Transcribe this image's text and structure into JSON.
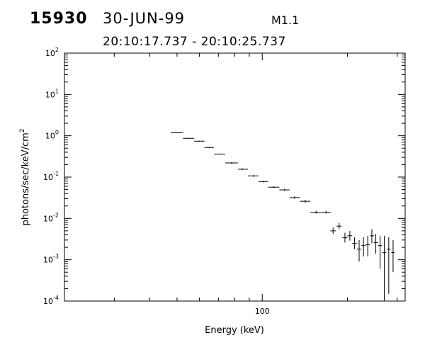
{
  "header": {
    "event_id": "15930",
    "date": "30-JUN-99",
    "flare_class": "M1.1",
    "time_range": "20:10:17.737 - 20:10:25.737"
  },
  "chart_data": {
    "type": "scatter",
    "title": "",
    "xlabel": "Energy (keV)",
    "ylabel_base": "photons/sec/keV/cm",
    "ylabel_sup": "2",
    "xscale": "log",
    "yscale": "log",
    "xlim": [
      20,
      320
    ],
    "ylim": [
      0.0001,
      100
    ],
    "grid": false,
    "x_tick_labels": [
      "100"
    ],
    "x_minor_ticks": [
      30,
      40,
      50,
      60,
      70,
      80,
      90,
      200,
      300
    ],
    "y_ticks": [
      {
        "value": 0.0001,
        "base": "10",
        "exp": "-4"
      },
      {
        "value": 0.001,
        "base": "10",
        "exp": "-3"
      },
      {
        "value": 0.01,
        "base": "10",
        "exp": "-2"
      },
      {
        "value": 0.1,
        "base": "10",
        "exp": "-1"
      },
      {
        "value": 1,
        "base": "10",
        "exp": "0"
      },
      {
        "value": 10,
        "base": "10",
        "exp": "1"
      },
      {
        "value": 100,
        "base": "10",
        "exp": "2"
      }
    ],
    "points": [
      {
        "x": 50,
        "xlo": 47.5,
        "xhi": 52.5,
        "y": 1.18,
        "ylo": 1.15,
        "yhi": 1.21
      },
      {
        "x": 55,
        "xlo": 52.5,
        "xhi": 57.5,
        "y": 0.87,
        "ylo": 0.85,
        "yhi": 0.89
      },
      {
        "x": 60,
        "xlo": 57.5,
        "xhi": 62.5,
        "y": 0.74,
        "ylo": 0.72,
        "yhi": 0.76
      },
      {
        "x": 65,
        "xlo": 62.5,
        "xhi": 67.5,
        "y": 0.52,
        "ylo": 0.5,
        "yhi": 0.54
      },
      {
        "x": 71,
        "xlo": 67.5,
        "xhi": 74,
        "y": 0.36,
        "ylo": 0.35,
        "yhi": 0.37
      },
      {
        "x": 78,
        "xlo": 74,
        "xhi": 82,
        "y": 0.22,
        "ylo": 0.21,
        "yhi": 0.23
      },
      {
        "x": 85,
        "xlo": 82,
        "xhi": 89,
        "y": 0.155,
        "ylo": 0.148,
        "yhi": 0.162
      },
      {
        "x": 93,
        "xlo": 89,
        "xhi": 97,
        "y": 0.107,
        "ylo": 0.102,
        "yhi": 0.112
      },
      {
        "x": 101,
        "xlo": 97,
        "xhi": 105,
        "y": 0.078,
        "ylo": 0.074,
        "yhi": 0.082
      },
      {
        "x": 110,
        "xlo": 105,
        "xhi": 115,
        "y": 0.057,
        "ylo": 0.054,
        "yhi": 0.06
      },
      {
        "x": 120,
        "xlo": 115,
        "xhi": 125,
        "y": 0.049,
        "ylo": 0.046,
        "yhi": 0.052
      },
      {
        "x": 130,
        "xlo": 125,
        "xhi": 136,
        "y": 0.032,
        "ylo": 0.03,
        "yhi": 0.034
      },
      {
        "x": 142,
        "xlo": 136,
        "xhi": 148,
        "y": 0.026,
        "ylo": 0.024,
        "yhi": 0.028
      },
      {
        "x": 155,
        "xlo": 148,
        "xhi": 162,
        "y": 0.014,
        "ylo": 0.013,
        "yhi": 0.0152
      },
      {
        "x": 168,
        "xlo": 162,
        "xhi": 175,
        "y": 0.014,
        "ylo": 0.013,
        "yhi": 0.0152
      },
      {
        "x": 178,
        "xlo": 174,
        "xhi": 182,
        "y": 0.005,
        "ylo": 0.0042,
        "yhi": 0.006
      },
      {
        "x": 187,
        "xlo": 183,
        "xhi": 191,
        "y": 0.0065,
        "ylo": 0.0055,
        "yhi": 0.0078
      },
      {
        "x": 196,
        "xlo": 192,
        "xhi": 200,
        "y": 0.0034,
        "ylo": 0.0026,
        "yhi": 0.0045
      },
      {
        "x": 204,
        "xlo": 200,
        "xhi": 208,
        "y": 0.0038,
        "ylo": 0.0029,
        "yhi": 0.005
      },
      {
        "x": 212,
        "xlo": 208,
        "xhi": 216,
        "y": 0.0025,
        "ylo": 0.0018,
        "yhi": 0.0035
      },
      {
        "x": 220,
        "xlo": 216,
        "xhi": 224,
        "y": 0.0018,
        "ylo": 0.0009,
        "yhi": 0.003
      },
      {
        "x": 228,
        "xlo": 224,
        "xhi": 232,
        "y": 0.0022,
        "ylo": 0.0012,
        "yhi": 0.0035
      },
      {
        "x": 236,
        "xlo": 232,
        "xhi": 240,
        "y": 0.0023,
        "ylo": 0.0012,
        "yhi": 0.0038
      },
      {
        "x": 244,
        "xlo": 240,
        "xhi": 248,
        "y": 0.0038,
        "ylo": 0.0025,
        "yhi": 0.0055
      },
      {
        "x": 252,
        "xlo": 248,
        "xhi": 256,
        "y": 0.0026,
        "ylo": 0.0014,
        "yhi": 0.0042
      },
      {
        "x": 261,
        "xlo": 257,
        "xhi": 265,
        "y": 0.0022,
        "ylo": 0.0006,
        "yhi": 0.0038
      },
      {
        "x": 270,
        "xlo": 266,
        "xhi": 274,
        "y": 0.0015,
        "ylo": 0.0001,
        "yhi": 0.0038
      },
      {
        "x": 280,
        "xlo": 276,
        "xhi": 284,
        "y": 0.0018,
        "ylo": 0.00015,
        "yhi": 0.0035
      },
      {
        "x": 290,
        "xlo": 286,
        "xhi": 294,
        "y": 0.0015,
        "ylo": 0.0005,
        "yhi": 0.003
      }
    ]
  }
}
